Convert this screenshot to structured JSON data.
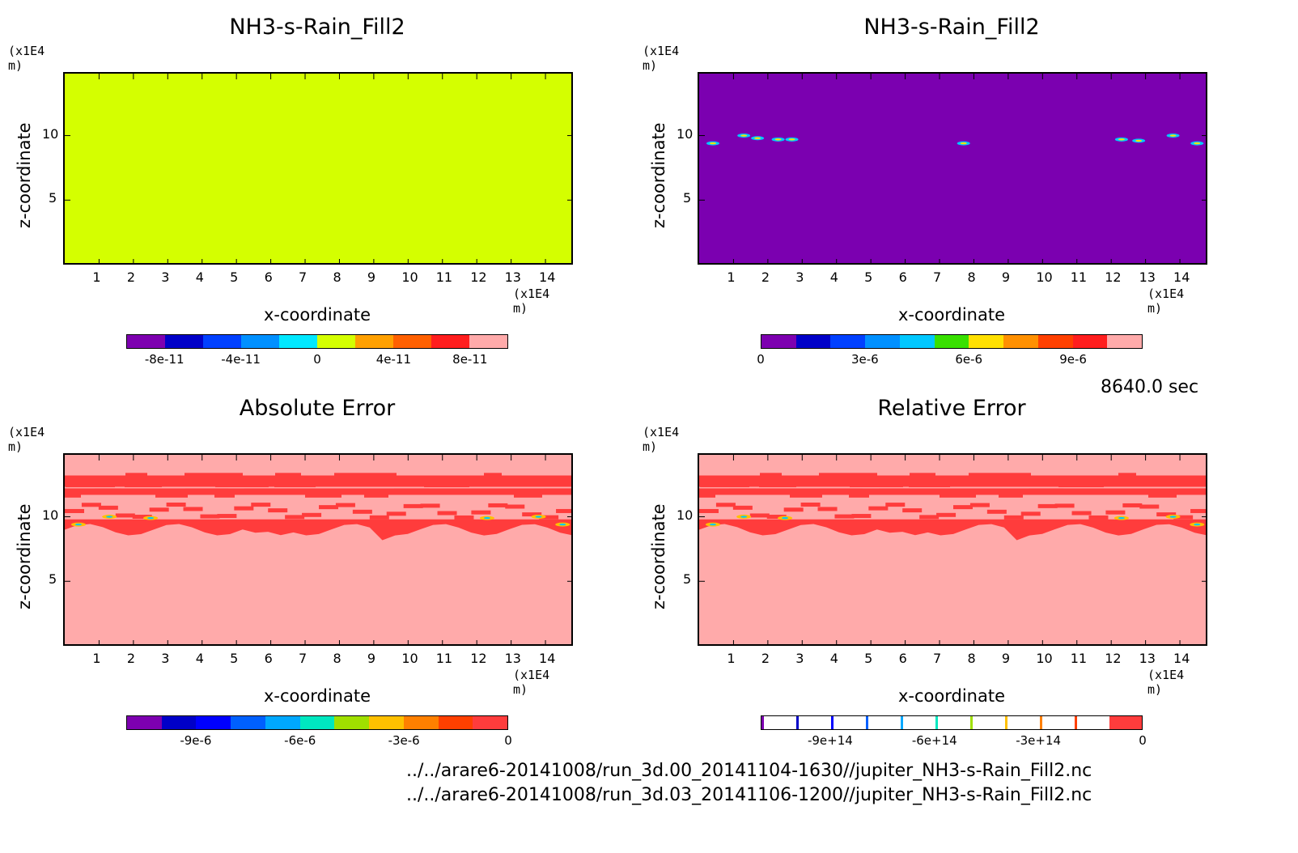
{
  "panels": [
    {
      "title": "NH3-s-Rain_Fill2",
      "unit_y": "(x1E4 m)",
      "unit_x": "(x1E4 m)",
      "xlabel": "x-coordinate",
      "ylabel": "z-coordinate",
      "fill": "#d4ff00",
      "colorbar_colors": [
        "#7d00b0",
        "#0000c8",
        "#0040ff",
        "#0090ff",
        "#00e8ff",
        "#d4ff00",
        "#ffa000",
        "#ff6000",
        "#ff1e1e",
        "#ffaaaa"
      ],
      "colorbar_labels": [
        "-8e-11",
        "-4e-11",
        "0",
        "4e-11",
        "8e-11"
      ]
    },
    {
      "title": "NH3-s-Rain_Fill2",
      "unit_y": "(x1E4 m)",
      "unit_x": "(x1E4 m)",
      "xlabel": "x-coordinate",
      "ylabel": "z-coordinate",
      "fill": "#7b00b0",
      "colorbar_colors": [
        "#7d00b0",
        "#0000c8",
        "#0040ff",
        "#0090ff",
        "#00c8ff",
        "#38e000",
        "#ffe000",
        "#ff9000",
        "#ff4000",
        "#ff1e1e",
        "#ffaaaa"
      ],
      "colorbar_labels": [
        "0",
        "3e-6",
        "6e-6",
        "9e-6"
      ]
    },
    {
      "title": "Absolute Error",
      "unit_y": "(x1E4 m)",
      "unit_x": "(x1E4 m)",
      "xlabel": "x-coordinate",
      "ylabel": "z-coordinate",
      "fill": "#ffaaaa",
      "colorbar_colors": [
        "#7d00b0",
        "#0000c8",
        "#0000ff",
        "#0060ff",
        "#00a8ff",
        "#00e8c0",
        "#a0e000",
        "#ffc000",
        "#ff8000",
        "#ff4000",
        "#ff3c3c"
      ],
      "colorbar_labels": [
        "-9e-6",
        "-6e-6",
        "-3e-6",
        "0"
      ]
    },
    {
      "title": "Relative Error",
      "unit_y": "(x1E4 m)",
      "unit_x": "(x1E4 m)",
      "xlabel": "x-coordinate",
      "ylabel": "z-coordinate",
      "fill": "#ffaaaa",
      "colorbar_colors": [
        "#ffffff",
        "#ffffff",
        "#ffffff",
        "#ffffff",
        "#ffffff",
        "#ffffff",
        "#ffffff",
        "#ffffff",
        "#ffffff",
        "#ffffff",
        "#ff3c3c"
      ],
      "colorbar_labels": [
        "-9e+14",
        "-6e+14",
        "-3e+14",
        "0"
      ]
    }
  ],
  "time_label": "8640.0 sec",
  "file_paths": [
    "../../arare6-20141008/run_3d.00_20141104-1630//jupiter_NH3-s-Rain_Fill2.nc",
    "../../arare6-20141008/run_3d.03_20141106-1200//jupiter_NH3-s-Rain_Fill2.nc"
  ],
  "chart_data": {
    "type": "heatmap",
    "x_ticks": [
      "1",
      "2",
      "3",
      "4",
      "5",
      "6",
      "7",
      "8",
      "9",
      "10",
      "11",
      "12",
      "13",
      "14"
    ],
    "y_ticks": [
      "5",
      "10"
    ],
    "xlim": [
      0,
      14.8
    ],
    "ylim": [
      0,
      14.8
    ],
    "layer_colors": {
      "layer": "#ff3c3c",
      "bg": "#ffaaaa",
      "blob": "#00c8ff"
    }
  }
}
